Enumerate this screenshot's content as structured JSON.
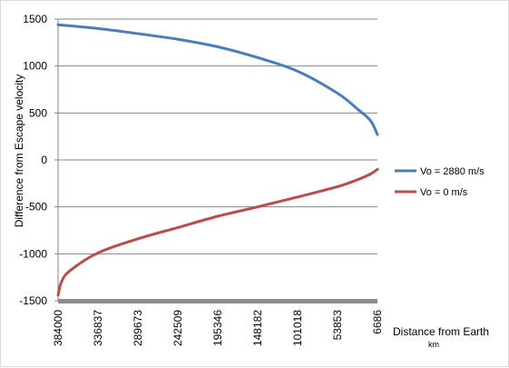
{
  "chart_data": {
    "type": "line",
    "title": "",
    "xlabel": "Distance from Earth",
    "xunit": "km",
    "ylabel": "Difference from Escape velocity",
    "x_ticks": [
      "384000",
      "336837",
      "289673",
      "242509",
      "195346",
      "148182",
      "101018",
      "53853",
      "6686"
    ],
    "ylim": [
      -1500,
      1500
    ],
    "y_ticks": [
      1500,
      1000,
      500,
      0,
      -500,
      -1000,
      -1500
    ],
    "grid": "horizontal",
    "legend_position": "right",
    "series": [
      {
        "name": "Vo = 2880 m/s",
        "color": "#4a7ebb",
        "x": [
          384000,
          336837,
          289673,
          242509,
          195346,
          148182,
          101018,
          53853,
          30000,
          15000,
          6686
        ],
        "y": [
          1440,
          1400,
          1345,
          1285,
          1205,
          1090,
          945,
          710,
          540,
          420,
          270
        ]
      },
      {
        "name": "Vo = 0 m/s",
        "color": "#be4b48",
        "x": [
          384000,
          380000,
          370000,
          336837,
          289673,
          242509,
          195346,
          148182,
          101018,
          53853,
          30000,
          15000,
          6686
        ],
        "y": [
          -1440,
          -1300,
          -1180,
          -990,
          -840,
          -720,
          -600,
          -500,
          -395,
          -285,
          -210,
          -150,
          -100
        ]
      }
    ]
  }
}
